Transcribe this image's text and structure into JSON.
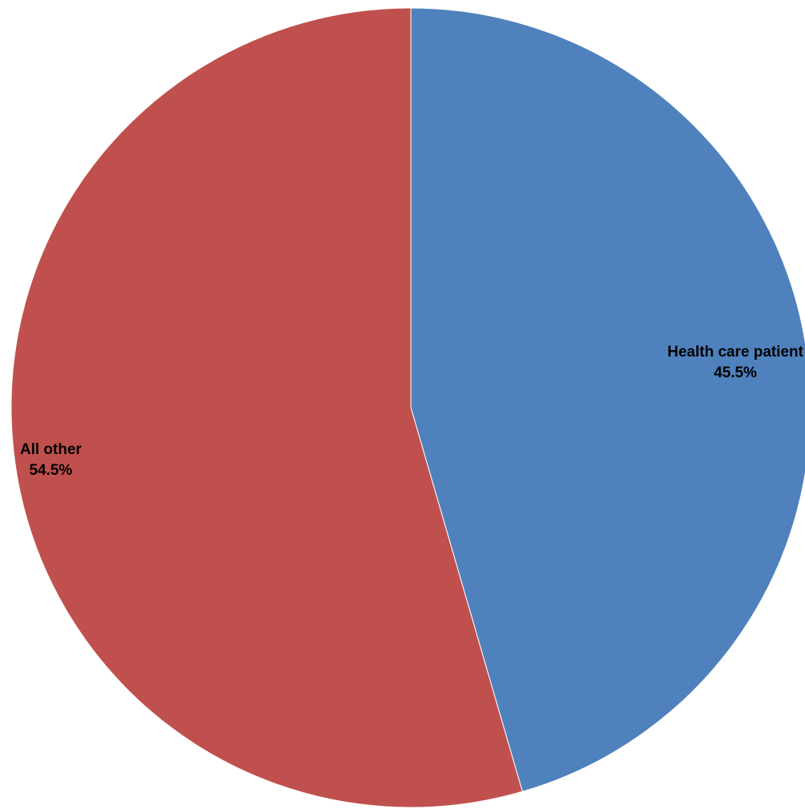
{
  "chart_data": {
    "type": "pie",
    "slices": [
      {
        "label": "Health care patient",
        "value": 45.5,
        "value_label": "45.5%",
        "color": "#4F81BD"
      },
      {
        "label": "All other",
        "value": 54.5,
        "value_label": "54.5%",
        "color": "#C0504D"
      }
    ],
    "start_angle": "12 o'clock",
    "direction": "clockwise",
    "legend": "none"
  }
}
